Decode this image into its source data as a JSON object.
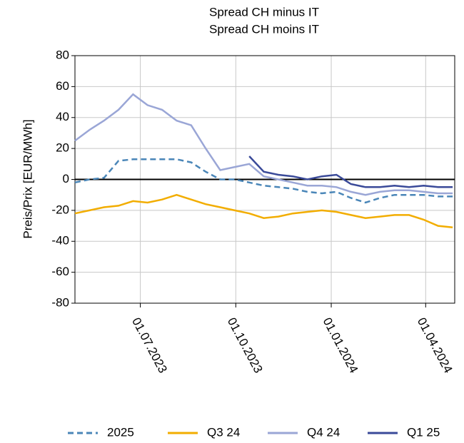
{
  "chart_data": {
    "type": "line",
    "title": "Spread CH minus IT",
    "subtitle": "Spread CH moins IT",
    "y_label": "Preis/Prix [EUR/MWh]",
    "x": [
      "2023-04-29",
      "2023-05-13",
      "2023-05-27",
      "2023-06-10",
      "2023-06-24",
      "2023-07-08",
      "2023-07-22",
      "2023-08-05",
      "2023-08-19",
      "2023-09-02",
      "2023-09-16",
      "2023-09-30",
      "2023-10-14",
      "2023-10-28",
      "2023-11-11",
      "2023-11-25",
      "2023-12-09",
      "2023-12-23",
      "2024-01-06",
      "2024-01-20",
      "2024-02-03",
      "2024-02-17",
      "2024-03-02",
      "2024-03-16",
      "2024-03-30",
      "2024-04-13",
      "2024-04-27"
    ],
    "series": [
      {
        "name": "2025",
        "color": "#4a86b8",
        "dashed": true,
        "values": [
          -2,
          0,
          1,
          12,
          13,
          13,
          13,
          13,
          11,
          5,
          0,
          0,
          -2,
          -4,
          -5,
          -6,
          -8,
          -9,
          -8,
          -12,
          -15,
          -12,
          -10,
          -10,
          -10,
          -11,
          -11
        ]
      },
      {
        "name": "Q3 24",
        "color": "#f2ad00",
        "values": [
          -22,
          -20,
          -18,
          -17,
          -14,
          -15,
          -13,
          -10,
          -13,
          -16,
          -18,
          -20,
          -22,
          -25,
          -24,
          -22,
          -21,
          -20,
          -21,
          -23,
          -25,
          -24,
          -23,
          -23,
          -26,
          -30,
          -31
        ]
      },
      {
        "name": "Q4 24",
        "color": "#9aa6d6",
        "values": [
          25,
          32,
          38,
          45,
          55,
          48,
          45,
          38,
          35,
          20,
          6,
          8,
          10,
          2,
          0,
          -2,
          -4,
          -4,
          -5,
          -8,
          -10,
          -8,
          -7,
          -7,
          -8,
          -9,
          -9
        ]
      },
      {
        "name": "Q1 25",
        "color": "#3a4a99",
        "values": [
          null,
          null,
          null,
          null,
          null,
          null,
          null,
          null,
          null,
          null,
          null,
          null,
          15,
          5,
          3,
          2,
          0,
          2,
          3,
          -3,
          -5,
          -5,
          -4,
          -5,
          -4,
          -5,
          -5
        ]
      }
    ],
    "xlim": [
      "2023-04-29",
      "2024-04-29"
    ],
    "xticks": [
      {
        "value": "2023-07-01",
        "label": "01.07.2023"
      },
      {
        "value": "2023-10-01",
        "label": "01.10.2023"
      },
      {
        "value": "2024-01-01",
        "label": "01.01.2024"
      },
      {
        "value": "2024-04-01",
        "label": "01.04.2024"
      }
    ],
    "ylim": [
      -80,
      80
    ],
    "yticks": [
      -80,
      -60,
      -40,
      -20,
      0,
      20,
      40,
      60,
      80
    ],
    "grid": true,
    "legend": "bottom"
  }
}
